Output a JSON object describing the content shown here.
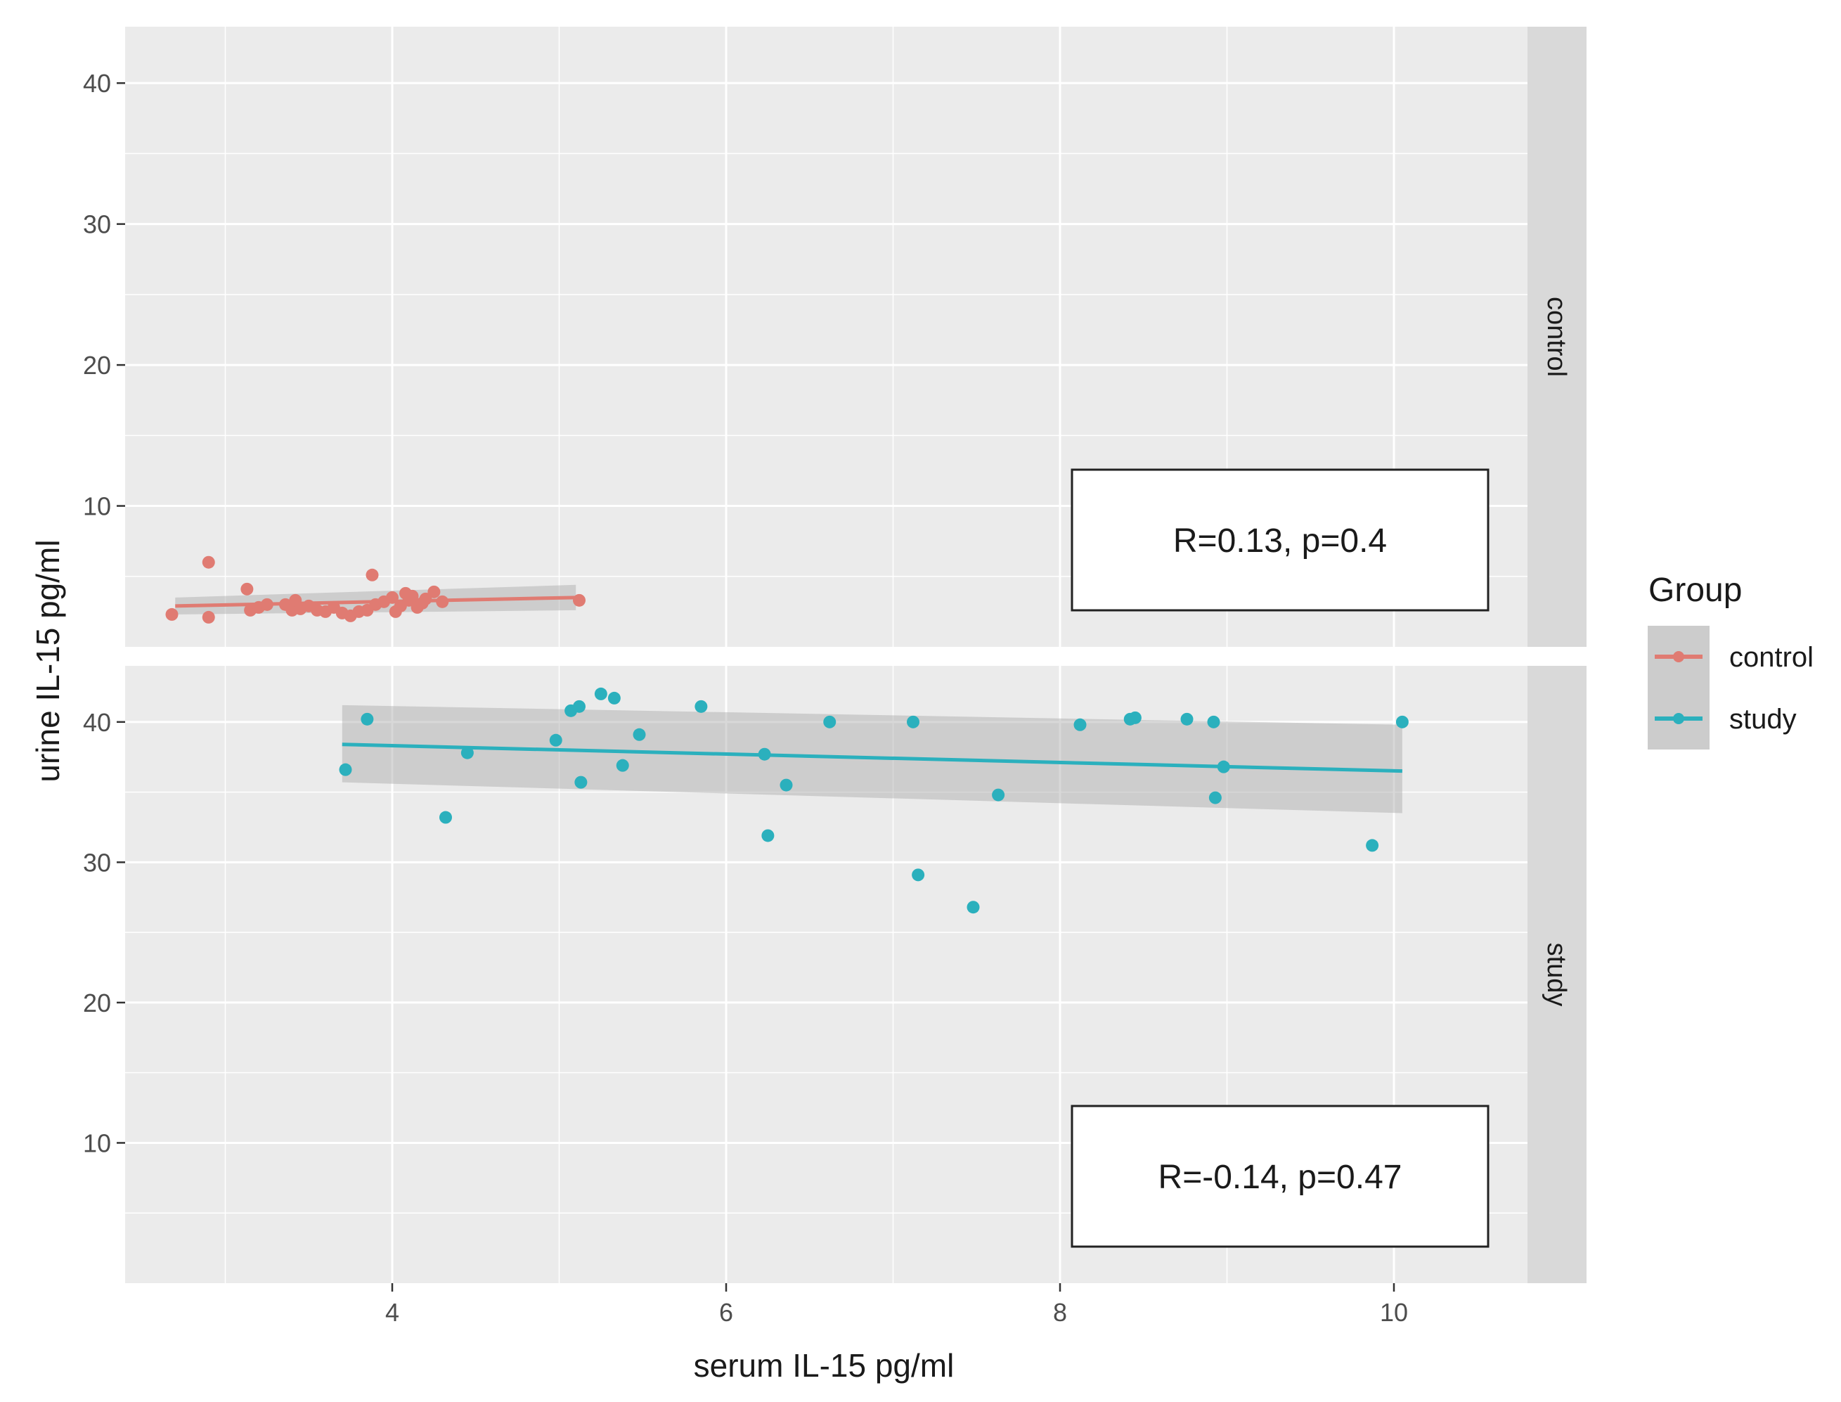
{
  "chart_data": {
    "type": "scatter",
    "xlabel": "serum IL-15 pg/ml",
    "ylabel": "urine IL-15 pg/ml",
    "xlim": [
      2.4,
      10.8
    ],
    "x_ticks": [
      4,
      6,
      8,
      10
    ],
    "y_ticks": [
      10,
      20,
      30,
      40
    ],
    "legend": {
      "title": "Group",
      "placement": "right",
      "entries": [
        {
          "label": "control",
          "color": "#e07b72"
        },
        {
          "label": "study",
          "color": "#2bb0bd"
        }
      ]
    },
    "panels": [
      {
        "strip": "control",
        "color": "#e07b72",
        "ylim": [
          0,
          44
        ],
        "annotation": "R=0.13, p=0.4",
        "fit": {
          "x": [
            2.7,
            5.1
          ],
          "y": [
            2.9,
            3.5
          ],
          "ci_lower": [
            2.3,
            2.6
          ],
          "ci_upper": [
            3.5,
            4.4
          ]
        },
        "points": [
          [
            2.68,
            2.3
          ],
          [
            2.9,
            6.0
          ],
          [
            2.9,
            2.1
          ],
          [
            3.13,
            4.1
          ],
          [
            3.15,
            2.6
          ],
          [
            3.2,
            2.8
          ],
          [
            3.25,
            3.0
          ],
          [
            3.36,
            3.0
          ],
          [
            3.4,
            2.6
          ],
          [
            3.42,
            3.3
          ],
          [
            3.45,
            2.7
          ],
          [
            3.5,
            2.9
          ],
          [
            3.55,
            2.6
          ],
          [
            3.6,
            2.5
          ],
          [
            3.65,
            2.8
          ],
          [
            3.7,
            2.4
          ],
          [
            3.75,
            2.2
          ],
          [
            3.8,
            2.5
          ],
          [
            3.85,
            2.6
          ],
          [
            3.88,
            5.1
          ],
          [
            3.9,
            3.0
          ],
          [
            3.95,
            3.2
          ],
          [
            4.0,
            3.5
          ],
          [
            4.02,
            2.5
          ],
          [
            4.05,
            2.9
          ],
          [
            4.08,
            3.8
          ],
          [
            4.1,
            3.3
          ],
          [
            4.12,
            3.6
          ],
          [
            4.15,
            2.8
          ],
          [
            4.18,
            3.1
          ],
          [
            4.2,
            3.4
          ],
          [
            4.25,
            3.9
          ],
          [
            4.3,
            3.2
          ],
          [
            5.12,
            3.3
          ]
        ]
      },
      {
        "strip": "study",
        "color": "#2bb0bd",
        "ylim": [
          0,
          44
        ],
        "annotation": "R=-0.14, p=0.47",
        "fit": {
          "x": [
            3.7,
            10.05
          ],
          "y": [
            38.4,
            36.5
          ],
          "ci_lower": [
            35.7,
            33.5
          ],
          "ci_upper": [
            41.2,
            39.8
          ]
        },
        "points": [
          [
            3.72,
            36.6
          ],
          [
            3.85,
            40.2
          ],
          [
            4.32,
            33.2
          ],
          [
            4.45,
            37.8
          ],
          [
            4.98,
            38.7
          ],
          [
            5.07,
            40.8
          ],
          [
            5.12,
            41.1
          ],
          [
            5.13,
            35.7
          ],
          [
            5.25,
            42.0
          ],
          [
            5.33,
            41.7
          ],
          [
            5.38,
            36.9
          ],
          [
            5.48,
            39.1
          ],
          [
            5.85,
            41.1
          ],
          [
            6.23,
            37.7
          ],
          [
            6.25,
            31.9
          ],
          [
            6.36,
            35.5
          ],
          [
            6.62,
            40.0
          ],
          [
            7.12,
            40.0
          ],
          [
            7.15,
            29.1
          ],
          [
            7.48,
            26.8
          ],
          [
            7.63,
            34.8
          ],
          [
            8.12,
            39.8
          ],
          [
            8.42,
            40.2
          ],
          [
            8.45,
            40.3
          ],
          [
            8.76,
            40.2
          ],
          [
            8.92,
            40.0
          ],
          [
            8.93,
            34.6
          ],
          [
            8.98,
            36.8
          ],
          [
            9.87,
            31.2
          ],
          [
            10.05,
            40.0
          ]
        ]
      }
    ]
  }
}
